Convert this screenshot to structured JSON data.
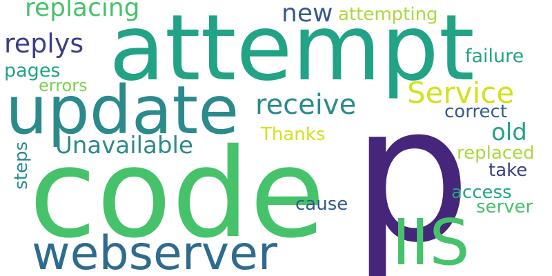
{
  "word_cloud": {
    "background": "#ffffff",
    "words": [
      {
        "id": "p",
        "text": "p",
        "color": "#46267a"
      },
      {
        "id": "code",
        "text": "code",
        "color": "#46c26b"
      },
      {
        "id": "attempt",
        "text": "attempt",
        "color": "#22a385"
      },
      {
        "id": "update",
        "text": "update",
        "color": "#2b8a8b"
      },
      {
        "id": "webserver",
        "text": "webserver",
        "color": "#2f6b8e"
      },
      {
        "id": "iis",
        "text": "IIS",
        "color": "#46c26b"
      },
      {
        "id": "service",
        "text": "Service",
        "color": "#d2e21b"
      },
      {
        "id": "receive",
        "text": "receive",
        "color": "#2b8a8b"
      },
      {
        "id": "replacing",
        "text": "replacing",
        "color": "#46c26b"
      },
      {
        "id": "replys",
        "text": "replys",
        "color": "#3b3f86"
      },
      {
        "id": "new",
        "text": "new",
        "color": "#355a8c"
      },
      {
        "id": "unavailable",
        "text": "Unavailable",
        "color": "#2b8a8b"
      },
      {
        "id": "old",
        "text": "old",
        "color": "#22a385"
      },
      {
        "id": "attempting",
        "text": "attempting",
        "color": "#a9d93c"
      },
      {
        "id": "failure",
        "text": "failure",
        "color": "#22a385"
      },
      {
        "id": "correct",
        "text": "correct",
        "color": "#355a8c"
      },
      {
        "id": "pages",
        "text": "pages",
        "color": "#22a385"
      },
      {
        "id": "errors",
        "text": "errors",
        "color": "#79d14f"
      },
      {
        "id": "thanks",
        "text": "Thanks",
        "color": "#d2e21b"
      },
      {
        "id": "replaced",
        "text": "replaced",
        "color": "#a9d93c"
      },
      {
        "id": "take",
        "text": "take",
        "color": "#3b3f86"
      },
      {
        "id": "access",
        "text": "access",
        "color": "#22a385"
      },
      {
        "id": "server",
        "text": "server",
        "color": "#46c26b"
      },
      {
        "id": "cause",
        "text": "cause",
        "color": "#355a8c"
      },
      {
        "id": "steps",
        "text": "steps",
        "color": "#2b8a8b"
      }
    ]
  }
}
